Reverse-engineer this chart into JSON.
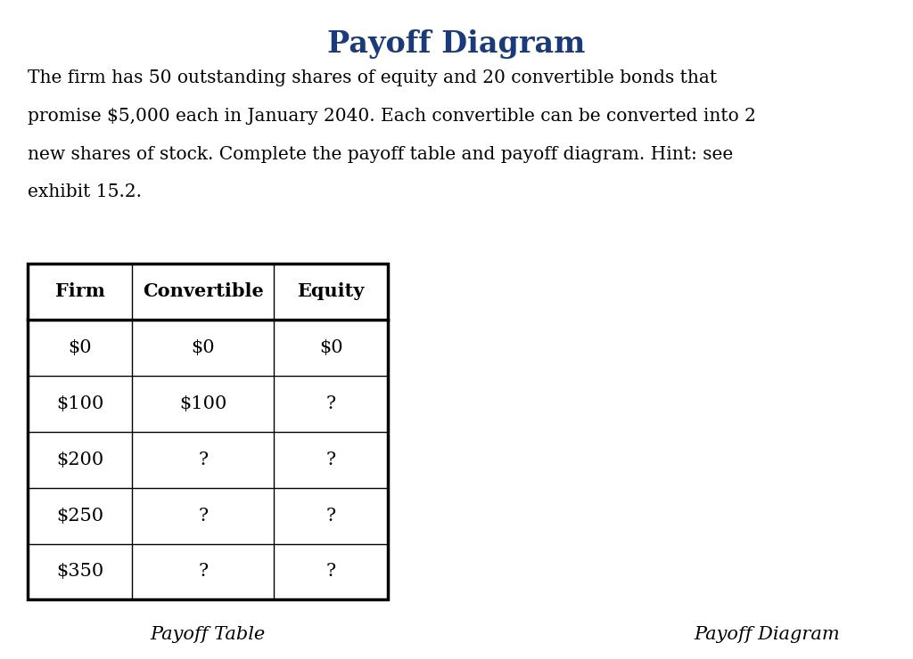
{
  "title": "Payoff Diagram",
  "title_color": "#1a3a7a",
  "title_fontsize": 24,
  "body_text_lines": [
    "The firm has 50 outstanding shares of equity and 20 convertible bonds that",
    "promise $5,000 each in January 2040. Each convertible can be converted into 2",
    "new shares of stock. Complete the payoff table and payoff diagram. Hint: see",
    "exhibit 15.2."
  ],
  "body_fontsize": 14.5,
  "body_color": "#000000",
  "table_headers": [
    "Firm",
    "Convertible",
    "Equity"
  ],
  "table_rows": [
    [
      "$0",
      "$0",
      "$0"
    ],
    [
      "$100",
      "$100",
      "?"
    ],
    [
      "$200",
      "?",
      "?"
    ],
    [
      "$250",
      "?",
      "?"
    ],
    [
      "$350",
      "?",
      "?"
    ]
  ],
  "table_header_fontsize": 15,
  "table_cell_fontsize": 15,
  "caption_left": "Payoff Table",
  "caption_right": "Payoff Diagram",
  "caption_fontsize": 15,
  "background_color": "#ffffff"
}
